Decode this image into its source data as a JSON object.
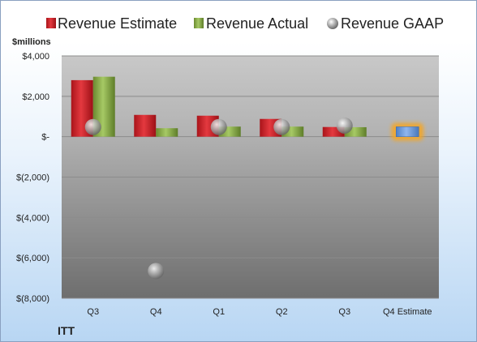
{
  "chart_data": {
    "type": "bar",
    "company": "ITT",
    "unit_label": "$millions",
    "categories": [
      "Q3",
      "Q4",
      "Q1",
      "Q2",
      "Q3",
      "Q4 Estimate"
    ],
    "series": [
      {
        "name": "Revenue Estimate",
        "kind": "bar",
        "color": "#d42027",
        "values": [
          2800,
          1080,
          1040,
          880,
          480,
          null
        ]
      },
      {
        "name": "Revenue Actual",
        "kind": "bar",
        "color": "#8db04c",
        "values": [
          2970,
          420,
          500,
          500,
          470,
          null
        ]
      },
      {
        "name": "Revenue GAAP",
        "kind": "point",
        "color": "#c0c0c0",
        "values": [
          480,
          -6650,
          480,
          480,
          550,
          null
        ]
      }
    ],
    "forecast": {
      "category": "Q4 Estimate",
      "value": 490,
      "color": "#6f9fe0",
      "glow": "#f5a623"
    },
    "y_ticks": [
      {
        "value": 4000,
        "label": "$4,000"
      },
      {
        "value": 2000,
        "label": "$2,000"
      },
      {
        "value": 0,
        "label": "$-"
      },
      {
        "value": -2000,
        "label": "$(2,000)"
      },
      {
        "value": -4000,
        "label": "$(4,000)"
      },
      {
        "value": -6000,
        "label": "$(6,000)"
      },
      {
        "value": -8000,
        "label": "$(8,000)"
      }
    ],
    "ylim": [
      -8000,
      4000
    ],
    "grid": true,
    "legend": "top"
  }
}
